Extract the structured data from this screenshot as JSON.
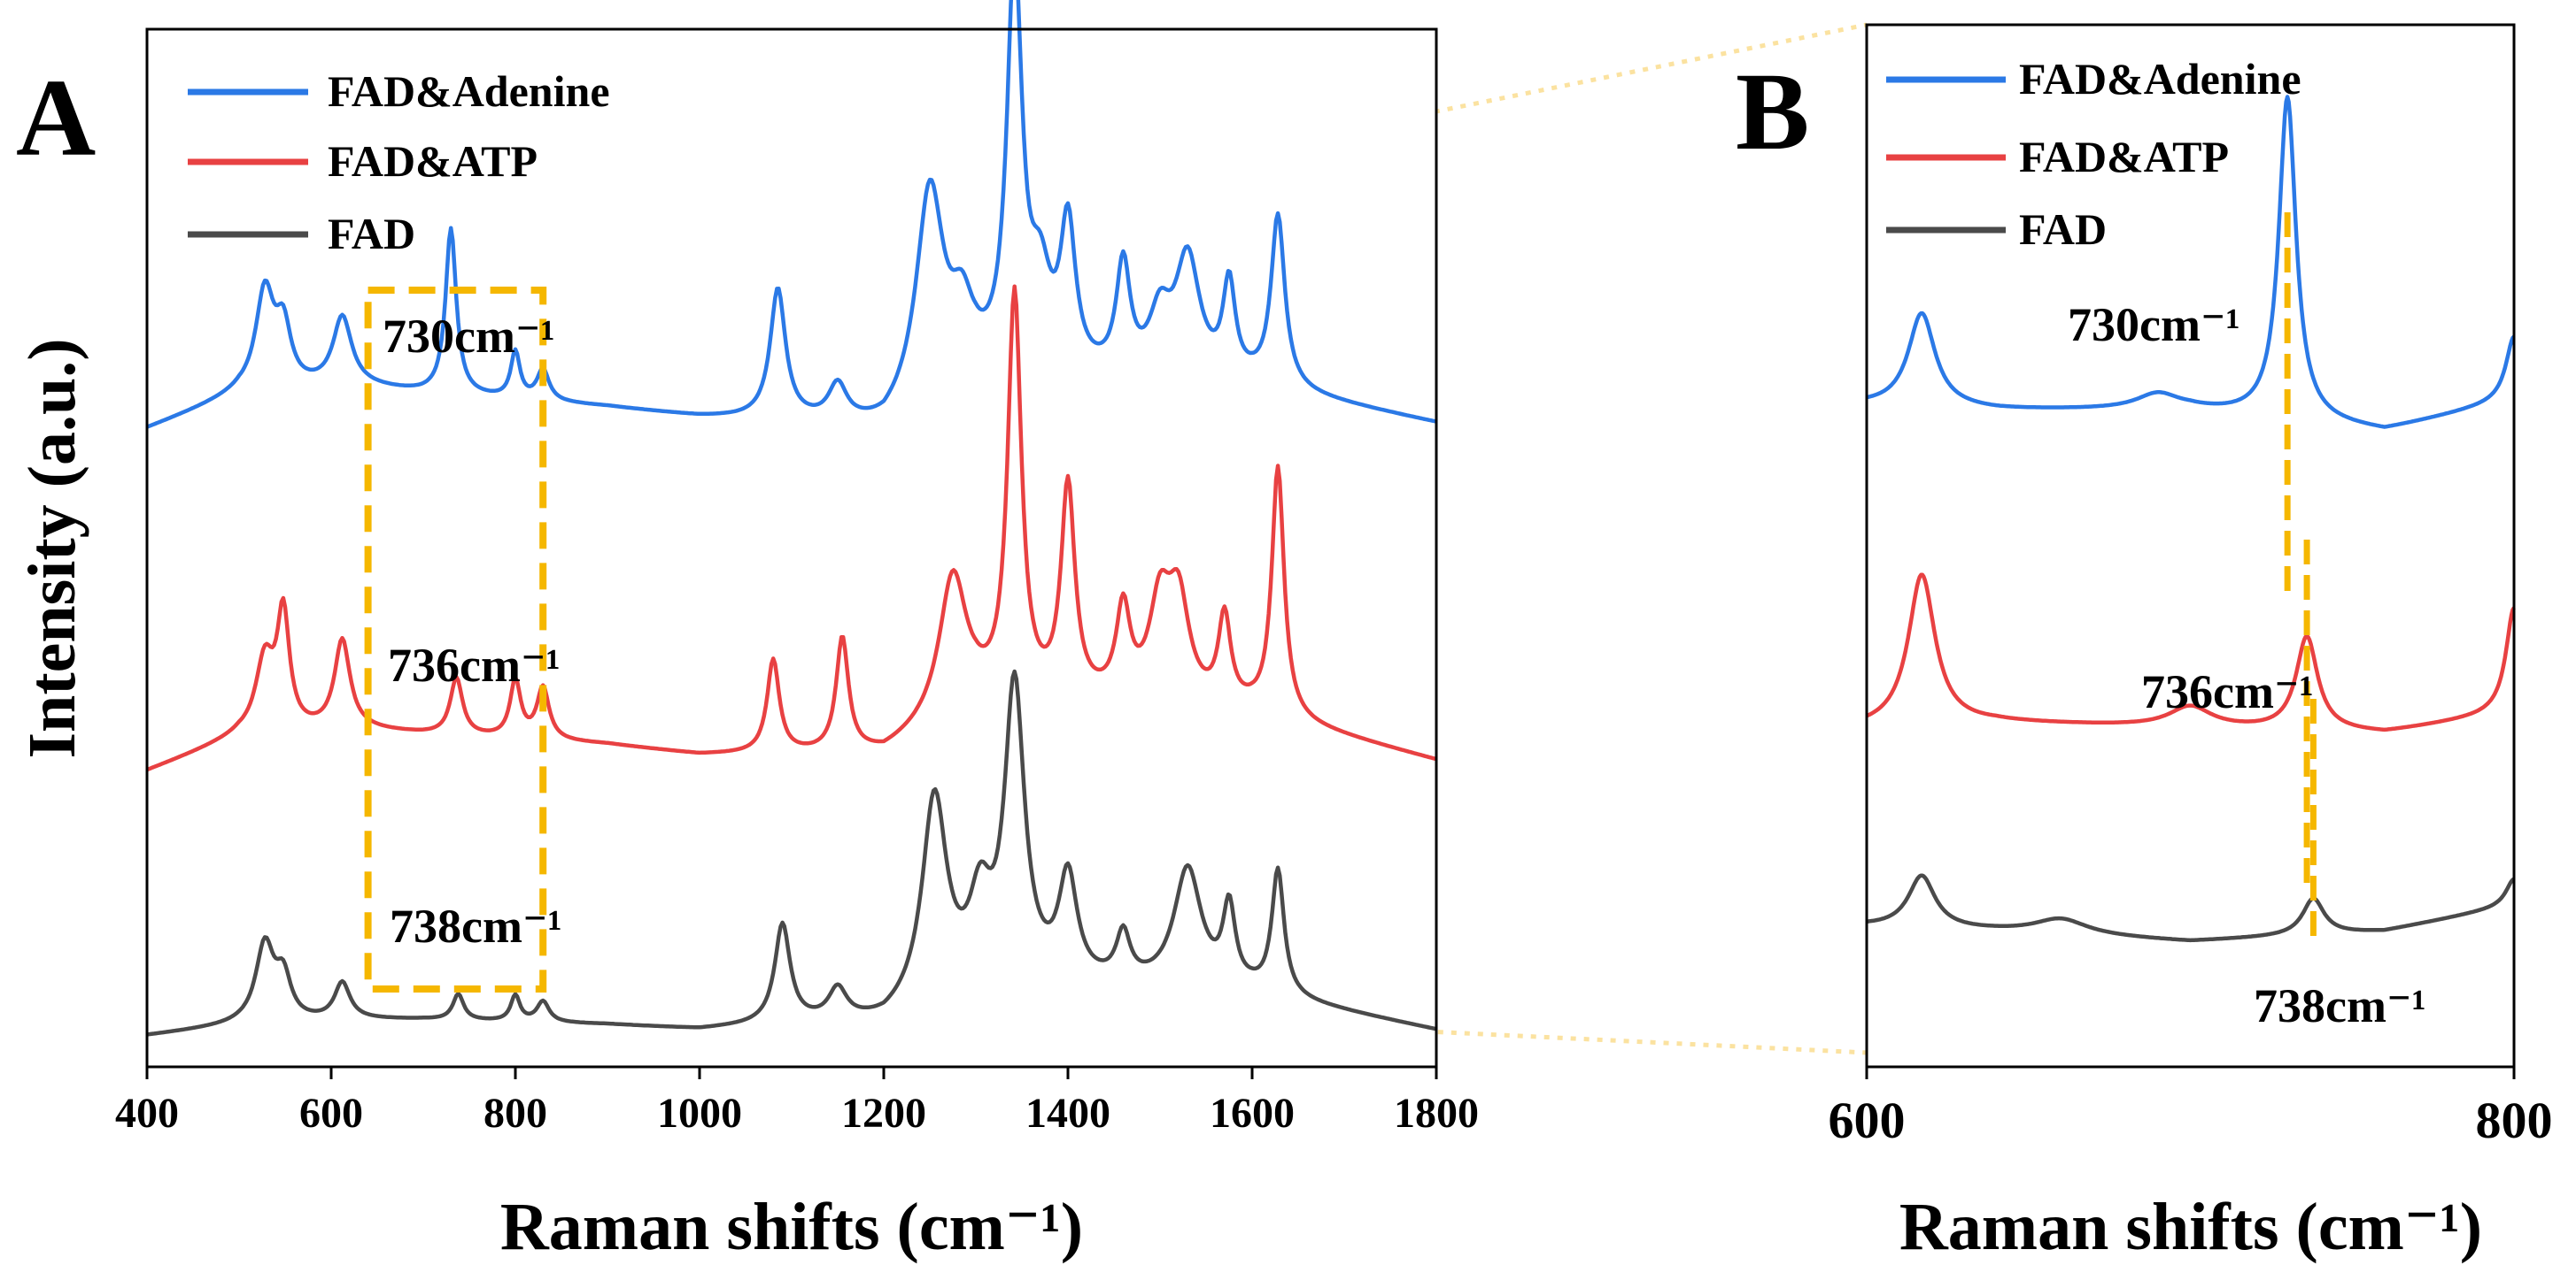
{
  "colors": {
    "adenine": "#2b79e6",
    "atp": "#e84142",
    "fad": "#4a4a4a",
    "highlight": "#f5b700"
  },
  "panel_a": {
    "letter": "A",
    "xlabel": "Raman shifts (cm⁻¹)",
    "ylabel": "Intensity (a.u.)",
    "xticks": [
      "400",
      "600",
      "800",
      "1000",
      "1200",
      "1400",
      "1600",
      "1800"
    ],
    "annotations": [
      "730cm⁻¹",
      "736cm⁻¹",
      "738cm⁻¹"
    ]
  },
  "panel_b": {
    "letter": "B",
    "xlabel": "Raman shifts (cm⁻¹)",
    "xticks": [
      "600",
      "800"
    ],
    "annotations": [
      "730cm⁻¹",
      "736cm⁻¹",
      "738cm⁻¹"
    ]
  },
  "legend": [
    "FAD&Adenine",
    "FAD&ATP",
    "FAD"
  ],
  "chart_data": [
    {
      "type": "line",
      "panel": "A",
      "xlabel": "Raman shifts (cm⁻¹)",
      "ylabel": "Intensity (a.u.)",
      "xlim": [
        400,
        1800
      ],
      "ylim": [
        0,
        1
      ],
      "yticks_shown": false,
      "legend_position": "top-left",
      "highlight_box_x": [
        640,
        830
      ],
      "series": [
        {
          "name": "FAD&Adenine",
          "baseline": [
            [
              400,
              0.615
            ],
            [
              500,
              0.648
            ],
            [
              620,
              0.656
            ],
            [
              700,
              0.648
            ],
            [
              900,
              0.635
            ],
            [
              1000,
              0.625
            ],
            [
              1100,
              0.62
            ],
            [
              1200,
              0.61
            ],
            [
              1300,
              0.655
            ],
            [
              1450,
              0.658
            ],
            [
              1600,
              0.655
            ],
            [
              1800,
              0.62
            ]
          ],
          "peaks": [
            [
              528,
              0.095,
              12
            ],
            [
              548,
              0.055,
              10
            ],
            [
              612,
              0.065,
              12
            ],
            [
              730,
              0.16,
              7
            ],
            [
              800,
              0.045,
              6
            ],
            [
              830,
              0.03,
              8
            ],
            [
              1085,
              0.125,
              10
            ],
            [
              1150,
              0.035,
              12
            ],
            [
              1250,
              0.205,
              18
            ],
            [
              1285,
              0.06,
              15
            ],
            [
              1342,
              0.39,
              10
            ],
            [
              1370,
              0.08,
              14
            ],
            [
              1400,
              0.14,
              10
            ],
            [
              1460,
              0.105,
              9
            ],
            [
              1500,
              0.055,
              14
            ],
            [
              1530,
              0.115,
              16
            ],
            [
              1575,
              0.09,
              8
            ],
            [
              1628,
              0.165,
              9
            ]
          ]
        },
        {
          "name": "FAD&ATP",
          "baseline": [
            [
              400,
              0.285
            ],
            [
              500,
              0.318
            ],
            [
              620,
              0.325
            ],
            [
              700,
              0.32
            ],
            [
              900,
              0.31
            ],
            [
              1000,
              0.3
            ],
            [
              1100,
              0.3
            ],
            [
              1200,
              0.3
            ],
            [
              1300,
              0.345
            ],
            [
              1450,
              0.348
            ],
            [
              1600,
              0.34
            ],
            [
              1800,
              0.295
            ]
          ],
          "peaks": [
            [
              528,
              0.07,
              12
            ],
            [
              548,
              0.11,
              8
            ],
            [
              612,
              0.085,
              10
            ],
            [
              736,
              0.055,
              8
            ],
            [
              800,
              0.055,
              7
            ],
            [
              830,
              0.05,
              8
            ],
            [
              1080,
              0.09,
              8
            ],
            [
              1155,
              0.11,
              8
            ],
            [
              1275,
              0.135,
              18
            ],
            [
              1342,
              0.39,
              9
            ],
            [
              1400,
              0.205,
              9
            ],
            [
              1460,
              0.085,
              9
            ],
            [
              1500,
              0.09,
              14
            ],
            [
              1520,
              0.095,
              14
            ],
            [
              1570,
              0.085,
              8
            ],
            [
              1628,
              0.24,
              8
            ]
          ]
        },
        {
          "name": "FAD",
          "baseline": [
            [
              400,
              0.03
            ],
            [
              500,
              0.04
            ],
            [
              620,
              0.045
            ],
            [
              700,
              0.045
            ],
            [
              900,
              0.04
            ],
            [
              1000,
              0.035
            ],
            [
              1100,
              0.04
            ],
            [
              1200,
              0.04
            ],
            [
              1300,
              0.075
            ],
            [
              1450,
              0.075
            ],
            [
              1600,
              0.07
            ],
            [
              1800,
              0.035
            ]
          ],
          "peaks": [
            [
              528,
              0.075,
              12
            ],
            [
              548,
              0.04,
              10
            ],
            [
              612,
              0.035,
              10
            ],
            [
              738,
              0.025,
              7
            ],
            [
              800,
              0.025,
              6
            ],
            [
              830,
              0.02,
              8
            ],
            [
              1090,
              0.095,
              10
            ],
            [
              1150,
              0.03,
              12
            ],
            [
              1255,
              0.195,
              16
            ],
            [
              1305,
              0.07,
              14
            ],
            [
              1342,
              0.285,
              13
            ],
            [
              1400,
              0.1,
              12
            ],
            [
              1460,
              0.045,
              9
            ],
            [
              1530,
              0.115,
              18
            ],
            [
              1575,
              0.075,
              8
            ],
            [
              1628,
              0.12,
              8
            ]
          ]
        }
      ]
    },
    {
      "type": "line",
      "panel": "B",
      "xlabel": "Raman shifts (cm⁻¹)",
      "xlim": [
        600,
        800
      ],
      "ylim": [
        0,
        1
      ],
      "yticks_shown": false,
      "legend_position": "top-left",
      "markers_x": [
        730,
        736,
        738
      ],
      "series": [
        {
          "name": "FAD&Adenine",
          "baseline": [
            [
              600,
              0.635
            ],
            [
              640,
              0.63
            ],
            [
              700,
              0.63
            ],
            [
              760,
              0.61
            ],
            [
              800,
              0.64
            ]
          ],
          "peaks": [
            [
              617,
              0.09,
              5
            ],
            [
              690,
              0.015,
              8
            ],
            [
              730,
              0.31,
              3.2
            ],
            [
              800,
              0.06,
              3
            ]
          ]
        },
        {
          "name": "FAD&ATP",
          "baseline": [
            [
              600,
              0.325
            ],
            [
              640,
              0.33
            ],
            [
              700,
              0.325
            ],
            [
              760,
              0.32
            ],
            [
              800,
              0.34
            ]
          ],
          "peaks": [
            [
              617,
              0.145,
              5
            ],
            [
              700,
              0.02,
              8
            ],
            [
              736,
              0.09,
              4
            ],
            [
              800,
              0.1,
              3
            ]
          ]
        },
        {
          "name": "FAD",
          "baseline": [
            [
              600,
              0.135
            ],
            [
              640,
              0.13
            ],
            [
              700,
              0.12
            ],
            [
              760,
              0.13
            ],
            [
              800,
              0.155
            ]
          ],
          "peaks": [
            [
              617,
              0.05,
              5
            ],
            [
              660,
              0.015,
              10
            ],
            [
              738,
              0.035,
              4
            ],
            [
              800,
              0.025,
              3
            ]
          ]
        }
      ]
    }
  ]
}
